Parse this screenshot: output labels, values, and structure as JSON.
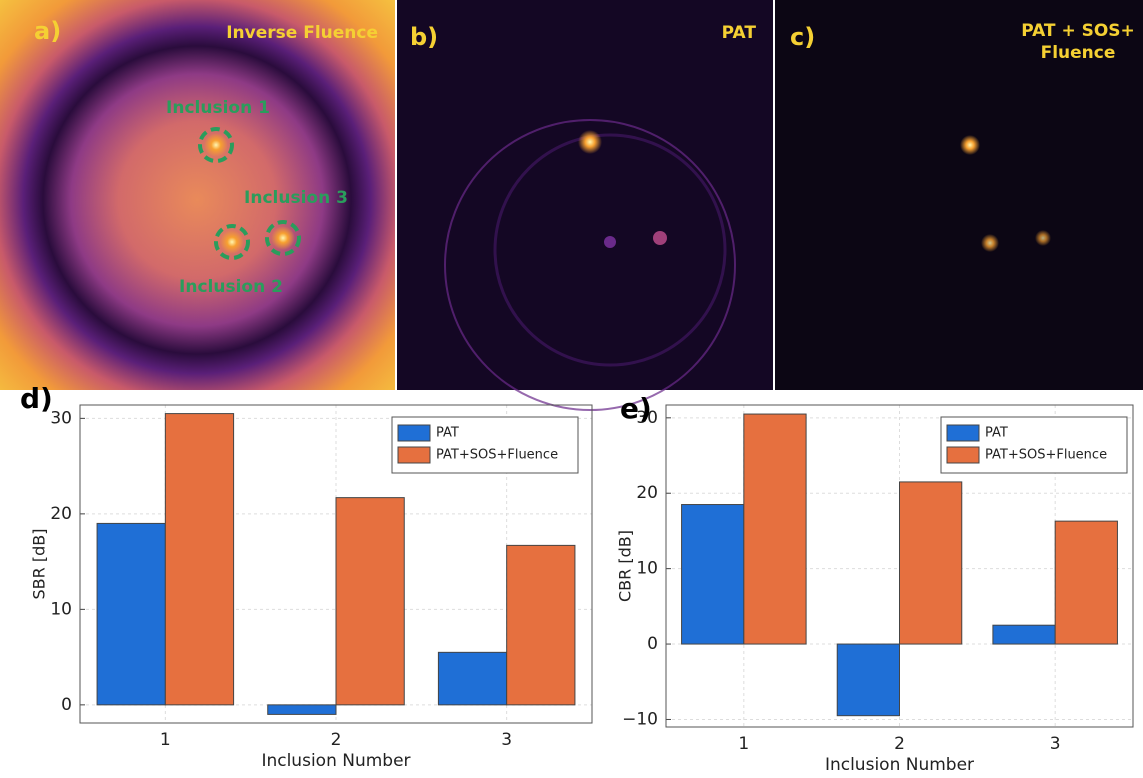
{
  "panels": [
    {
      "label": "a)",
      "title": "Inverse Fluence",
      "annotations": [
        "Inclusion 1",
        "Inclusion 2",
        "Inclusion 3"
      ]
    },
    {
      "label": "b)",
      "title": "PAT"
    },
    {
      "label": "c)",
      "title": [
        "PAT + SOS+",
        "Fluence"
      ]
    }
  ],
  "chart_data": [
    {
      "type": "bar",
      "panel_label": "d)",
      "x_label": "Inclusion Number",
      "y_label": "SBR [dB]",
      "categories": [
        "1",
        "2",
        "3"
      ],
      "series": [
        {
          "name": "PAT",
          "color": "#1f6fd6",
          "values": [
            19,
            -1,
            5.5
          ]
        },
        {
          "name": "PAT+SOS+Fluence",
          "color": "#e6703f",
          "values": [
            30.5,
            21.7,
            16.7
          ]
        }
      ],
      "ylim": [
        -1.9,
        31.4
      ],
      "yticks": [
        0,
        10,
        20,
        30
      ],
      "grid": true,
      "legend": "upper right"
    },
    {
      "type": "bar",
      "panel_label": "e)",
      "x_label": "Inclusion Number",
      "y_label": "CBR [dB]",
      "categories": [
        "1",
        "2",
        "3"
      ],
      "series": [
        {
          "name": "PAT",
          "color": "#1f6fd6",
          "values": [
            18.5,
            -9.5,
            2.5
          ]
        },
        {
          "name": "PAT+SOS+Fluence",
          "color": "#e6703f",
          "values": [
            30.5,
            21.5,
            16.3
          ]
        }
      ],
      "ylim": [
        -11,
        31.7
      ],
      "yticks": [
        {
          "value": -10,
          "label": "−10"
        },
        0,
        10,
        20,
        30
      ],
      "grid": true,
      "legend": "upper right"
    }
  ]
}
